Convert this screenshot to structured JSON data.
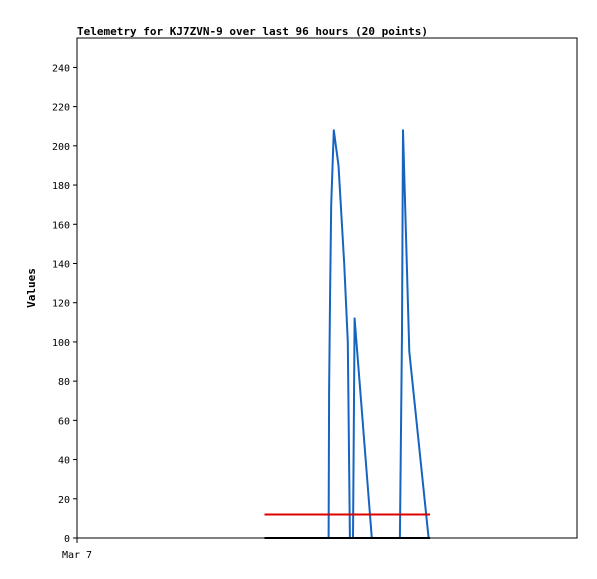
{
  "chart_data": {
    "type": "line",
    "title": "Telemetry for KJ7ZVN-9 over last 96 hours (20 points)",
    "xlabel": "",
    "ylabel": "Values",
    "x_tick_labels": [
      "Mar 7"
    ],
    "y_ticks": [
      0,
      20,
      40,
      60,
      80,
      100,
      120,
      140,
      160,
      180,
      200,
      220,
      240
    ],
    "ylim": [
      0,
      255
    ],
    "xlim": [
      0,
      96
    ],
    "grid": false,
    "legend": "none",
    "series": [
      {
        "color": "#1565c0",
        "points": [
          [
            48.3,
            0
          ],
          [
            48.4,
            75
          ],
          [
            48.6,
            125
          ],
          [
            48.8,
            170
          ],
          [
            49.3,
            208
          ],
          [
            50.2,
            190
          ],
          [
            51.3,
            140
          ],
          [
            52.0,
            100
          ],
          [
            52.4,
            0
          ],
          [
            53.0,
            0
          ],
          [
            53.3,
            112
          ],
          [
            56.6,
            0
          ],
          [
            62.0,
            0
          ],
          [
            62.4,
            105
          ],
          [
            62.6,
            208
          ],
          [
            63.8,
            95
          ],
          [
            67.5,
            0
          ]
        ]
      },
      {
        "color": "#dd0000",
        "points": [
          [
            36.0,
            12
          ],
          [
            67.8,
            12
          ]
        ]
      },
      {
        "color": "#000000",
        "points": [
          [
            36.0,
            0
          ],
          [
            67.8,
            0
          ]
        ]
      }
    ]
  }
}
